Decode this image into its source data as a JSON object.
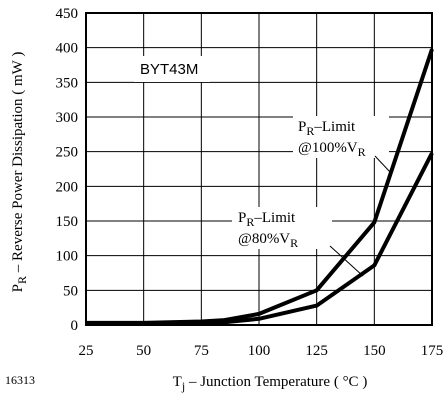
{
  "figure_id": "16313",
  "chart_data": {
    "type": "line",
    "model": "BYT43M",
    "xlabel": {
      "main": "T",
      "sub": "j",
      "rest": " – Junction Temperature ( °C )"
    },
    "ylabel": {
      "main": "P",
      "sub": "R",
      "rest": " – Reverse Power Dissipation ( mW )"
    },
    "xlim": [
      25,
      175
    ],
    "ylim": [
      0,
      450
    ],
    "xticks": [
      25,
      50,
      75,
      100,
      125,
      150,
      175
    ],
    "yticks": [
      0,
      50,
      100,
      150,
      200,
      250,
      300,
      350,
      400,
      450
    ],
    "grid": true,
    "series": [
      {
        "annotation": {
          "p": "P",
          "sub": "R",
          "rest": "–Limit",
          "line2": "@100%V",
          "sub2": "R"
        },
        "x": [
          25,
          50,
          75,
          85,
          100,
          125,
          150,
          175
        ],
        "y": [
          3,
          3,
          5,
          7,
          16,
          50,
          148,
          398
        ]
      },
      {
        "annotation": {
          "p": "P",
          "sub": "R",
          "rest": "–Limit",
          "line2": "@80%V",
          "sub2": "R"
        },
        "x": [
          25,
          50,
          75,
          85,
          100,
          125,
          150,
          175
        ],
        "y": [
          2,
          2,
          3,
          4,
          9,
          28,
          86,
          248
        ]
      }
    ]
  }
}
